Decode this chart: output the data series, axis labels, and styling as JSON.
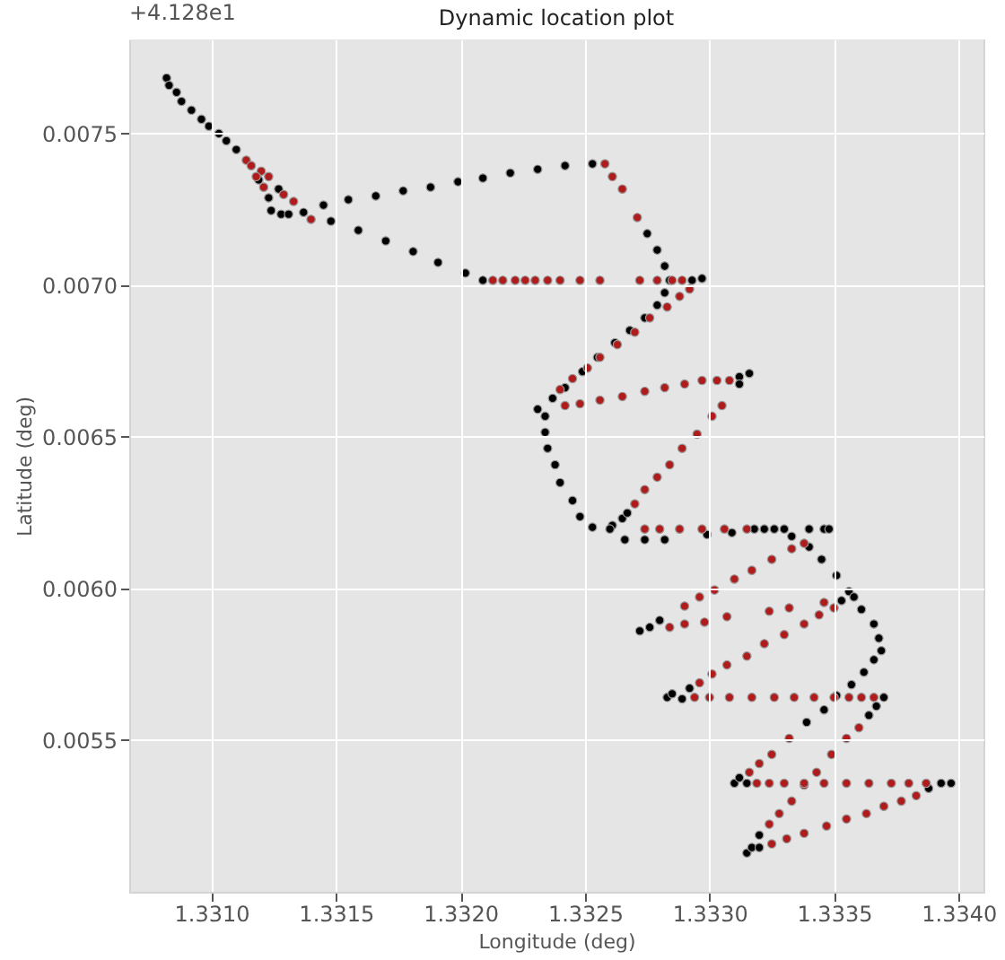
{
  "chart_data": {
    "type": "scatter",
    "title": "Dynamic location plot",
    "xlabel": "Longitude (deg)",
    "ylabel": "Latitude (deg)",
    "annotations": [
      "+4.128e1"
    ],
    "xlim": [
      1.33067,
      1.3341
    ],
    "ylim": [
      0.005,
      0.00781
    ],
    "xticks": [
      {
        "value": 1.331,
        "label": "1.3310"
      },
      {
        "value": 1.3315,
        "label": "1.3315"
      },
      {
        "value": 1.332,
        "label": "1.3320"
      },
      {
        "value": 1.3325,
        "label": "1.3325"
      },
      {
        "value": 1.333,
        "label": "1.3330"
      },
      {
        "value": 1.3335,
        "label": "1.3335"
      },
      {
        "value": 1.334,
        "label": "1.3340"
      }
    ],
    "yticks": [
      {
        "value": 0.0055,
        "label": "0.0055"
      },
      {
        "value": 0.006,
        "label": "0.0060"
      },
      {
        "value": 0.0065,
        "label": "0.0065"
      },
      {
        "value": 0.007,
        "label": "0.0070"
      },
      {
        "value": 0.0075,
        "label": "0.0075"
      }
    ],
    "grid": true,
    "marker": "circle",
    "series": [
      {
        "color": "#000000",
        "x": [
          1.33082,
          1.33083,
          1.33086,
          1.33088,
          1.33092,
          1.33096,
          1.33099,
          1.33103,
          1.33106,
          1.3311,
          1.33119,
          1.33123,
          1.33124,
          1.33128,
          1.33131,
          1.33145,
          1.33155,
          1.33166,
          1.33177,
          1.33188,
          1.33199,
          1.33209,
          1.3322,
          1.33231,
          1.33242,
          1.33253,
          1.33127,
          1.33137,
          1.33148,
          1.33159,
          1.3317,
          1.33181,
          1.33191,
          1.33202,
          1.33209,
          1.33275,
          1.33279,
          1.33282,
          1.33284,
          1.33293,
          1.33297,
          1.33282,
          1.33279,
          1.33274,
          1.33268,
          1.33262,
          1.33255,
          1.33249,
          1.33242,
          1.33237,
          1.33231,
          1.33234,
          1.33234,
          1.33235,
          1.33238,
          1.3324,
          1.33245,
          1.33248,
          1.33253,
          1.33261,
          1.33265,
          1.33267,
          1.3326,
          1.33266,
          1.33274,
          1.33282,
          1.33299,
          1.33309,
          1.33312,
          1.33316,
          1.33312,
          1.33318,
          1.33322,
          1.33326,
          1.3333,
          1.3334,
          1.33346,
          1.33348,
          1.33333,
          1.3334,
          1.33345,
          1.33351,
          1.33356,
          1.33358,
          1.33353,
          1.33361,
          1.33366,
          1.33368,
          1.33369,
          1.33366,
          1.33362,
          1.33357,
          1.33351,
          1.3337,
          1.33367,
          1.33364,
          1.33346,
          1.33339,
          1.33272,
          1.33276,
          1.3328,
          1.33283,
          1.33285,
          1.33289,
          1.33292,
          1.3331,
          1.33312,
          1.33315,
          1.33393,
          1.33397,
          1.33388,
          1.33315,
          1.33317,
          1.3332,
          1.3332
        ],
        "values": [
          0.007683,
          0.007659,
          0.007636,
          0.007606,
          0.007577,
          0.007547,
          0.007524,
          0.0075,
          0.007476,
          0.007447,
          0.007347,
          0.007288,
          0.007246,
          0.007234,
          0.007234,
          0.007264,
          0.007282,
          0.007294,
          0.007311,
          0.007323,
          0.007341,
          0.007353,
          0.00737,
          0.007382,
          0.007394,
          0.0074,
          0.007317,
          0.00724,
          0.007211,
          0.007181,
          0.007146,
          0.007111,
          0.007075,
          0.00704,
          0.007016,
          0.00717,
          0.007116,
          0.007063,
          0.007016,
          0.007016,
          0.007022,
          0.006975,
          0.006934,
          0.006892,
          0.006851,
          0.00681,
          0.006762,
          0.006715,
          0.006662,
          0.006627,
          0.006591,
          0.006568,
          0.006515,
          0.006462,
          0.006408,
          0.006349,
          0.00629,
          0.006237,
          0.006202,
          0.006208,
          0.006231,
          0.006249,
          0.006196,
          0.006161,
          0.006161,
          0.006161,
          0.006178,
          0.006184,
          0.006698,
          0.006709,
          0.006674,
          0.006196,
          0.006196,
          0.006196,
          0.006196,
          0.006196,
          0.006196,
          0.006196,
          0.006172,
          0.006137,
          0.006096,
          0.006043,
          0.00599,
          0.005972,
          0.00596,
          0.005931,
          0.005883,
          0.005836,
          0.005795,
          0.005765,
          0.005724,
          0.005683,
          0.005647,
          0.005641,
          0.005612,
          0.005582,
          0.0056,
          0.005559,
          0.00586,
          0.005872,
          0.005895,
          0.005641,
          0.005653,
          0.005636,
          0.005671,
          0.005358,
          0.005376,
          0.005358,
          0.005358,
          0.005358,
          0.005341,
          0.005128,
          0.005146,
          0.005187,
          0.005146
        ]
      },
      {
        "color": "#b01c1c",
        "x": [
          1.33114,
          1.33116,
          1.3312,
          1.33123,
          1.33118,
          1.33121,
          1.33129,
          1.33133,
          1.3314,
          1.33258,
          1.33261,
          1.33265,
          1.33271,
          1.33213,
          1.33217,
          1.33222,
          1.33226,
          1.3323,
          1.33235,
          1.3324,
          1.33248,
          1.33256,
          1.33272,
          1.33279,
          1.33285,
          1.33289,
          1.3324,
          1.33245,
          1.33251,
          1.33256,
          1.33263,
          1.3327,
          1.33276,
          1.33283,
          1.33288,
          1.33292,
          1.33242,
          1.33248,
          1.33256,
          1.33265,
          1.33274,
          1.33282,
          1.3329,
          1.33297,
          1.33303,
          1.33308,
          1.33305,
          1.33301,
          1.33295,
          1.33289,
          1.33284,
          1.33279,
          1.33274,
          1.3327,
          1.33274,
          1.3328,
          1.33288,
          1.33297,
          1.33306,
          1.33315,
          1.3329,
          1.33296,
          1.33302,
          1.3331,
          1.33317,
          1.33325,
          1.33333,
          1.33338,
          1.33284,
          1.3329,
          1.33298,
          1.33307,
          1.33324,
          1.33332,
          1.33344,
          1.33346,
          1.3335,
          1.33338,
          1.3333,
          1.33322,
          1.33315,
          1.33307,
          1.33301,
          1.33296,
          1.33294,
          1.333,
          1.33308,
          1.33317,
          1.33326,
          1.33334,
          1.33342,
          1.3335,
          1.33356,
          1.33361,
          1.33366,
          1.3336,
          1.33355,
          1.33349,
          1.33343,
          1.33338,
          1.33332,
          1.33325,
          1.3332,
          1.33316,
          1.33319,
          1.33324,
          1.3333,
          1.33338,
          1.33346,
          1.33355,
          1.33364,
          1.33373,
          1.3338,
          1.33387,
          1.33383,
          1.33377,
          1.3337,
          1.33363,
          1.33355,
          1.33347,
          1.33338,
          1.33331,
          1.33325,
          1.33333,
          1.33328,
          1.33324
        ],
        "values": [
          0.007412,
          0.007394,
          0.007376,
          0.007358,
          0.007358,
          0.007323,
          0.007299,
          0.007276,
          0.007217,
          0.0074,
          0.007358,
          0.007317,
          0.007223,
          0.007016,
          0.007016,
          0.007016,
          0.007016,
          0.007016,
          0.007016,
          0.007016,
          0.007016,
          0.007016,
          0.007016,
          0.007016,
          0.007016,
          0.007016,
          0.006656,
          0.006692,
          0.006727,
          0.006762,
          0.006804,
          0.006845,
          0.006892,
          0.006928,
          0.006963,
          0.006987,
          0.006603,
          0.006609,
          0.006621,
          0.006633,
          0.00665,
          0.006662,
          0.006674,
          0.006686,
          0.006686,
          0.006686,
          0.006603,
          0.006568,
          0.006509,
          0.006462,
          0.006408,
          0.006367,
          0.006326,
          0.006279,
          0.006196,
          0.006196,
          0.006196,
          0.006196,
          0.006196,
          0.006196,
          0.005942,
          0.005972,
          0.005995,
          0.006031,
          0.00606,
          0.006096,
          0.006131,
          0.006149,
          0.005872,
          0.005883,
          0.005889,
          0.005907,
          0.005925,
          0.005936,
          0.005913,
          0.005954,
          0.005936,
          0.005883,
          0.005848,
          0.005818,
          0.005777,
          0.005748,
          0.005718,
          0.005689,
          0.005641,
          0.005641,
          0.005641,
          0.005641,
          0.005641,
          0.005641,
          0.005641,
          0.005641,
          0.005641,
          0.005641,
          0.005641,
          0.005541,
          0.005506,
          0.005453,
          0.005394,
          0.005352,
          0.005506,
          0.005453,
          0.005423,
          0.005394,
          0.005358,
          0.005358,
          0.005358,
          0.005358,
          0.005358,
          0.005358,
          0.005358,
          0.005358,
          0.005358,
          0.005358,
          0.005317,
          0.005299,
          0.005282,
          0.005258,
          0.00524,
          0.005217,
          0.005193,
          0.005175,
          0.005158,
          0.005299,
          0.005258,
          0.005223
        ]
      }
    ]
  }
}
